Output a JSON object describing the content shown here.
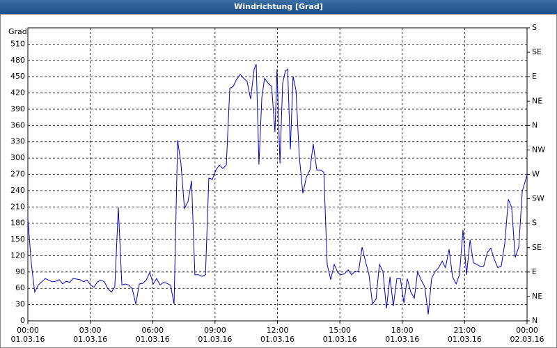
{
  "chart_data": {
    "type": "line",
    "title": "Windrichtung [Grad]",
    "y_label": "Grad",
    "xlim": [
      0,
      24
    ],
    "ylim": [
      0,
      540
    ],
    "y2lim": [
      0,
      540
    ],
    "grid": true,
    "xticks": [
      {
        "value": 0,
        "label": "00:00\n01.03.16"
      },
      {
        "value": 3,
        "label": "03:00\n01.03.16"
      },
      {
        "value": 6,
        "label": "06:00\n01.03.16"
      },
      {
        "value": 9,
        "label": "09:00\n01.03.16"
      },
      {
        "value": 12,
        "label": "12:00\n01.03.16"
      },
      {
        "value": 15,
        "label": "15:00\n01.03.16"
      },
      {
        "value": 18,
        "label": "18:00\n01.03.16"
      },
      {
        "value": 21,
        "label": "21:00\n01.03.16"
      },
      {
        "value": 24,
        "label": "00:00\n02.03.16"
      }
    ],
    "yticks": [
      0,
      30,
      60,
      90,
      120,
      150,
      180,
      210,
      240,
      270,
      300,
      330,
      360,
      390,
      420,
      450,
      480,
      510
    ],
    "y2ticks": [
      {
        "value": 0,
        "label": "N"
      },
      {
        "value": 45,
        "label": "NE"
      },
      {
        "value": 90,
        "label": "E"
      },
      {
        "value": 135,
        "label": "SE"
      },
      {
        "value": 180,
        "label": "S"
      },
      {
        "value": 225,
        "label": "SW"
      },
      {
        "value": 270,
        "label": "W"
      },
      {
        "value": 315,
        "label": "NW"
      },
      {
        "value": 360,
        "label": "N"
      },
      {
        "value": 405,
        "label": "NE"
      },
      {
        "value": 450,
        "label": "E"
      },
      {
        "value": 495,
        "label": "SE"
      },
      {
        "value": 540,
        "label": "S"
      }
    ],
    "x": [
      0,
      0.17,
      0.33,
      0.5,
      0.67,
      0.84,
      1.0,
      1.17,
      1.34,
      1.51,
      1.67,
      1.84,
      2.01,
      2.18,
      2.34,
      2.51,
      2.68,
      2.85,
      3.01,
      3.18,
      3.35,
      3.51,
      3.68,
      3.85,
      4.02,
      4.18,
      4.35,
      4.52,
      4.69,
      4.85,
      5.02,
      5.19,
      5.36,
      5.52,
      5.69,
      5.86,
      6.03,
      6.19,
      6.36,
      6.53,
      6.69,
      6.86,
      7.03,
      7.2,
      7.36,
      7.53,
      7.7,
      7.87,
      8.03,
      8.2,
      8.37,
      8.54,
      8.7,
      8.87,
      9.04,
      9.21,
      9.37,
      9.54,
      9.71,
      9.87,
      10.04,
      10.21,
      10.38,
      10.54,
      10.71,
      10.88,
      10.98,
      11.11,
      11.25,
      11.38,
      11.55,
      11.72,
      11.88,
      11.98,
      12.12,
      12.25,
      12.38,
      12.49,
      12.62,
      12.75,
      12.89,
      13.05,
      13.22,
      13.39,
      13.56,
      13.72,
      13.89,
      14.06,
      14.23,
      14.39,
      14.56,
      14.73,
      14.9,
      15.06,
      15.23,
      15.4,
      15.56,
      15.73,
      15.9,
      16.07,
      16.23,
      16.4,
      16.57,
      16.74,
      16.9,
      17.07,
      17.24,
      17.41,
      17.57,
      17.74,
      17.91,
      18.08,
      18.24,
      18.41,
      18.58,
      18.74,
      18.91,
      19.08,
      19.25,
      19.41,
      19.58,
      19.75,
      19.92,
      20.08,
      20.25,
      20.42,
      20.59,
      20.75,
      20.92,
      21.09,
      21.26,
      21.42,
      21.59,
      21.76,
      21.92,
      22.09,
      22.26,
      22.43,
      22.59,
      22.76,
      22.93,
      23.1,
      23.26,
      23.43,
      23.6,
      23.77,
      24.0
    ],
    "series": [
      {
        "color": "#0000c0",
        "values": [
          188,
          104,
          53,
          66,
          72,
          78,
          75,
          72,
          73,
          76,
          68,
          73,
          71,
          78,
          77,
          76,
          72,
          75,
          66,
          62,
          72,
          75,
          72,
          59,
          53,
          63,
          209,
          66,
          68,
          66,
          59,
          31,
          68,
          69,
          75,
          89,
          68,
          78,
          66,
          71,
          69,
          66,
          31,
          333,
          290,
          207,
          220,
          258,
          85,
          85,
          82,
          85,
          263,
          261,
          278,
          287,
          281,
          287,
          429,
          432,
          445,
          454,
          447,
          441,
          409,
          464,
          473,
          288,
          412,
          447,
          438,
          432,
          348,
          464,
          290,
          438,
          460,
          464,
          316,
          451,
          425,
          303,
          235,
          265,
          278,
          326,
          278,
          278,
          274,
          104,
          76,
          104,
          89,
          85,
          87,
          94,
          85,
          91,
          91,
          136,
          110,
          85,
          31,
          40,
          104,
          91,
          23,
          81,
          27,
          78,
          78,
          33,
          78,
          53,
          42,
          91,
          75,
          63,
          12,
          78,
          91,
          98,
          110,
          98,
          132,
          81,
          68,
          85,
          168,
          85,
          149,
          107,
          104,
          100,
          101,
          126,
          134,
          113,
          98,
          101,
          143,
          224,
          209,
          117,
          136,
          239,
          269
        ]
      }
    ]
  }
}
